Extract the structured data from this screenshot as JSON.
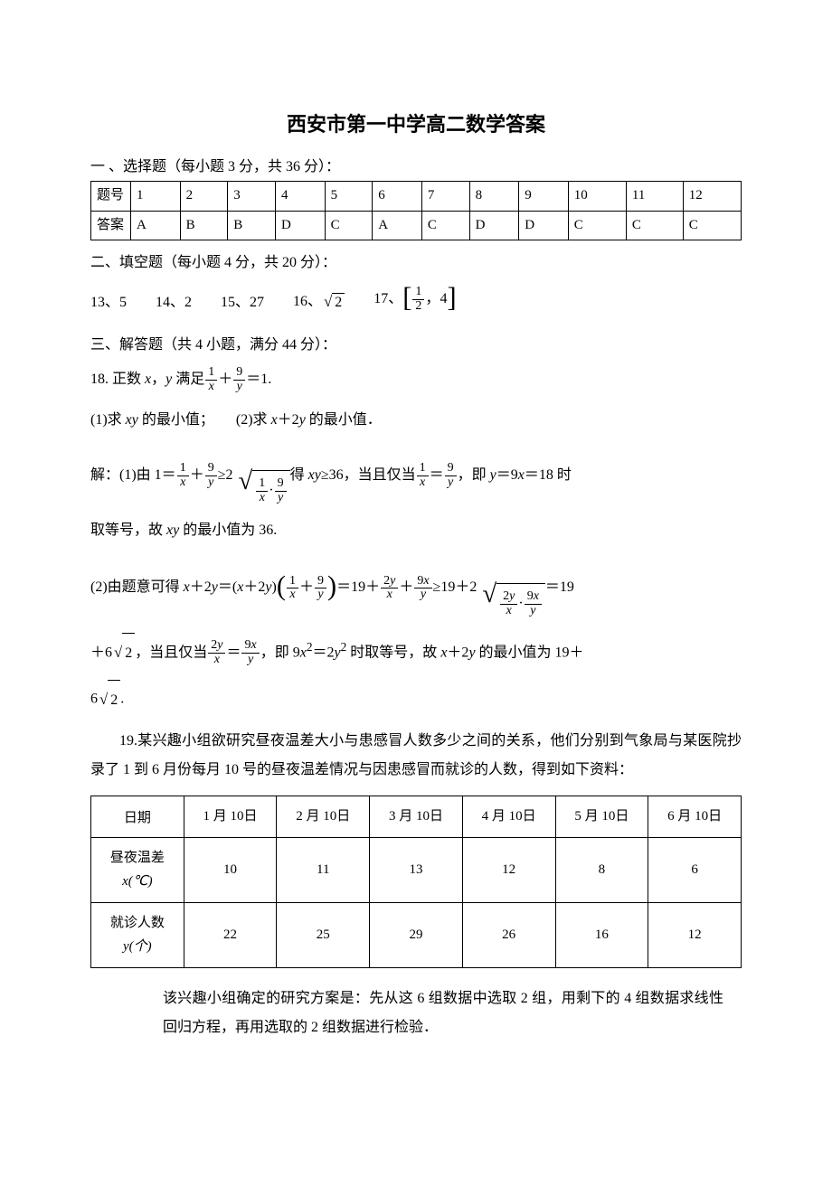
{
  "title": "西安市第一中学高二数学答案",
  "section1": {
    "heading": "一 、选择题（每小题 3 分，共 36 分）：",
    "rowhead_num": "题号",
    "rowhead_ans": "答案",
    "nums": [
      "1",
      "2",
      "3",
      "4",
      "5",
      "6",
      "7",
      "8",
      "9",
      "10",
      "11",
      "12"
    ],
    "answers": [
      "A",
      "B",
      "B",
      "D",
      "C",
      "A",
      "C",
      "D",
      "D",
      "C",
      "C",
      "C"
    ]
  },
  "section2": {
    "heading": "二、填空题（每小题 4 分，共 20 分）：",
    "items": {
      "q13_label": "13、",
      "q13_val": "5",
      "q14_label": "14、",
      "q14_val": "2",
      "q15_label": "15、",
      "q15_val": "27",
      "q16_label": "16、",
      "q17_label": "17、",
      "q17_half": "1",
      "q17_half_den": "2",
      "q17_right": "4"
    }
  },
  "section3": {
    "heading": "三、解答题（共 4 小题，满分 44 分）：",
    "q18": {
      "stem_pre": "18. 正数 ",
      "stem_mid": "，",
      "stem_sat": " 满足",
      "eq_rhs": "＝1.",
      "part1_label": "(1)求 ",
      "part1_tail": " 的最小值；",
      "part2_label": "(2)求 ",
      "part2_expr_mid": "＋2",
      "part2_tail": " 的最小值．",
      "sol_label": "解：",
      "sol1_pre": "(1)由 1＝",
      "sol1_plus": "＋",
      "sol1_ge": "≥2",
      "sol1_get": "得 ",
      "sol1_ge36": "≥36，当且仅当",
      "sol1_eq": "＝",
      "sol1_ie": "，即 ",
      "sol1_y9x18": "＝9",
      "sol1_eq18": "＝18 时",
      "sol1_end": "取等号，故 ",
      "sol1_min36": " 的最小值为 36.",
      "sol2_pre": "(2)由题意可得 ",
      "sol2_eq1": "＋2",
      "sol2_eq2": "＝(",
      "sol2_eq3": ")",
      "sol2_eq19": "＝19＋",
      "sol2_ge19": "≥19＋2",
      "sol2_eq19b": "＝19",
      "sol2_line2a": "＋6",
      "sol2_when": "，当且仅当",
      "sol2_ie2": "，即 9",
      "sol2_eq2y2": "＝2",
      "sol2_when2": " 时取等号，故 ",
      "sol2_min_pre": " 的最小值为 19＋",
      "sol2_finaldot": "."
    },
    "q19": {
      "para1": "19.某兴趣小组欲研究昼夜温差大小与患感冒人数多少之间的关系，他们分别到气象局与某医院抄录了 1 到 6 月份每月 10 号的昼夜温差情况与因患感冒而就诊的人数，得到如下资料：",
      "table": {
        "col0": "日期",
        "dates": [
          "1 月 10日",
          "2 月 10日",
          "3 月 10日",
          "4 月 10日",
          "5 月 10日",
          "6 月 10日"
        ],
        "row_x_label_a": "昼夜温差",
        "row_x_label_b": "x(℃)",
        "x_vals": [
          "10",
          "11",
          "13",
          "12",
          "8",
          "6"
        ],
        "row_y_label_a": "就诊人数",
        "row_y_label_b": "y(个)",
        "y_vals": [
          "22",
          "25",
          "29",
          "26",
          "16",
          "12"
        ]
      },
      "para2": "该兴趣小组确定的研究方案是：先从这 6 组数据中选取 2 组，用剩下的 4 组数据求线性回归方程，再用选取的 2 组数据进行检验．"
    }
  },
  "style": {
    "text_color": "#000000",
    "bg_color": "#ffffff",
    "border_color": "#000000",
    "title_fontsize": 22,
    "body_fontsize": 16
  }
}
